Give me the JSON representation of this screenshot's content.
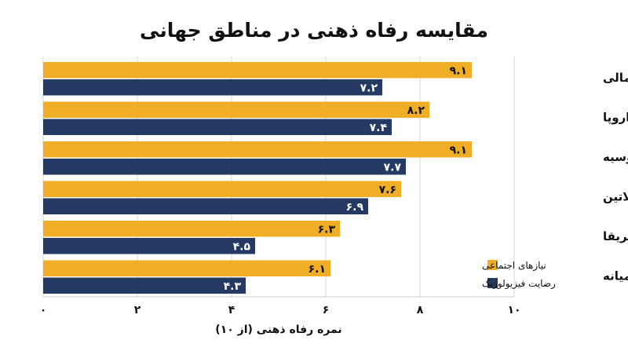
{
  "chart_data": {
    "type": "bar",
    "orientation": "horizontal",
    "title": "مقایسه رفاه ذهنی در مناطق جهانی",
    "xlabel": "نمره رفاه ذهنی (از ۱۰)",
    "ylabel": "",
    "xlim": [
      0,
      10
    ],
    "ticks": [
      {
        "value": 0,
        "label": "۰"
      },
      {
        "value": 2,
        "label": "۲"
      },
      {
        "value": 4,
        "label": "۴"
      },
      {
        "value": 6,
        "label": "۶"
      },
      {
        "value": 8,
        "label": "۸"
      },
      {
        "value": 10,
        "label": "۱۰"
      }
    ],
    "grid": true,
    "legend_position": "bottom-right",
    "categories": [
      "آمریکای شمالی",
      "اروپا",
      "آسیا-اقیانوسیه",
      "آمریکای لاتین",
      "آفریقا",
      "خاورمیانه"
    ],
    "series": [
      {
        "name": "نیازهای اجتماعی",
        "color": "#F0AD26",
        "values": [
          9.1,
          8.2,
          9.1,
          7.6,
          6.3,
          6.1
        ],
        "labels": [
          "۹.۱",
          "۸.۲",
          "۹.۱",
          "۷.۶",
          "۶.۳",
          "۶.۱"
        ]
      },
      {
        "name": "رضایت فیزیولوژیک",
        "color": "#253A63",
        "values": [
          7.2,
          7.4,
          7.7,
          6.9,
          4.5,
          4.3
        ],
        "labels": [
          "۷.۲",
          "۷.۴",
          "۷.۷",
          "۶.۹",
          "۴.۵",
          "۴.۳"
        ]
      }
    ]
  }
}
